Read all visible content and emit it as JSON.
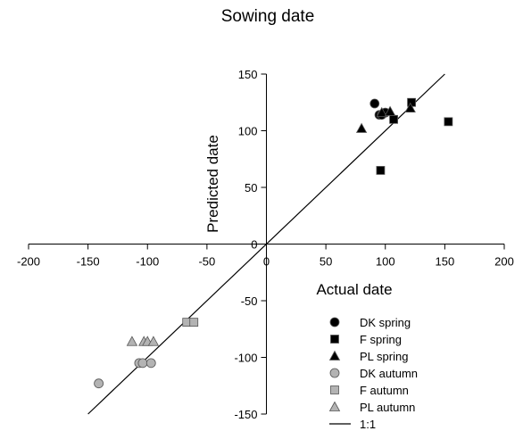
{
  "chart_data": {
    "type": "scatter",
    "title": "Sowing date",
    "xlabel": "Actual date",
    "ylabel": "Predicted date",
    "xlim": [
      -200,
      200
    ],
    "ylim": [
      -150,
      150
    ],
    "x_ticks": [
      -200,
      -150,
      -100,
      -50,
      0,
      50,
      100,
      150,
      200
    ],
    "y_ticks": [
      -150,
      -100,
      -50,
      0,
      50,
      100,
      150
    ],
    "grid": false,
    "legend_position": "bottom-right",
    "series": [
      {
        "name": "DK spring",
        "marker": "circle",
        "color": "#000000",
        "points": [
          [
            91,
            124
          ],
          [
            95,
            114
          ],
          [
            97,
            114
          ],
          [
            100,
            116
          ]
        ]
      },
      {
        "name": "F spring",
        "marker": "square",
        "color": "#000000",
        "points": [
          [
            96,
            65
          ],
          [
            107,
            110
          ],
          [
            122,
            125
          ],
          [
            153,
            108
          ]
        ]
      },
      {
        "name": "PL spring",
        "marker": "triangle",
        "color": "#000000",
        "points": [
          [
            80,
            102
          ],
          [
            97,
            116
          ],
          [
            104,
            117
          ],
          [
            121,
            120
          ]
        ]
      },
      {
        "name": "DK autumn",
        "marker": "circle",
        "color": "#b3b3b3",
        "points": [
          [
            -141,
            -123
          ],
          [
            -107,
            -105
          ],
          [
            -104,
            -105
          ],
          [
            -97,
            -105
          ]
        ]
      },
      {
        "name": "F autumn",
        "marker": "square",
        "color": "#b3b3b3",
        "points": [
          [
            -67,
            -69
          ],
          [
            -61,
            -69
          ]
        ]
      },
      {
        "name": "PL autumn",
        "marker": "triangle",
        "color": "#b3b3b3",
        "points": [
          [
            -113,
            -86
          ],
          [
            -103,
            -86
          ],
          [
            -100,
            -86
          ],
          [
            -95,
            -86
          ]
        ]
      }
    ],
    "reference_line": {
      "name": "1:1",
      "x": [
        -150,
        150
      ],
      "y": [
        -150,
        150
      ]
    }
  }
}
